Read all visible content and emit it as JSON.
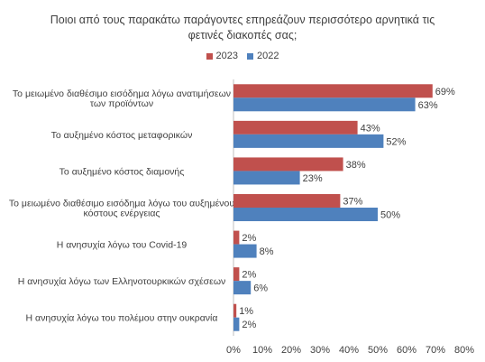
{
  "chart_data": {
    "type": "bar",
    "orientation": "horizontal",
    "title_lines": [
      "Ποιοι  από τους παρακάτω παράγοντες επηρεάζουν περισσότερο  αρνητικά τις",
      "φετινές διακοπές  σας;"
    ],
    "categories": [
      [
        "Το μειωμένο διαθέσιμο  εισόδημα λόγω ανατιμήσεων",
        "των προϊόντων"
      ],
      [
        "Το αυξημένο κόστος μεταφορικών"
      ],
      [
        "Το αυξημένο κόστος διαμονής"
      ],
      [
        "Το μειωμένο διαθέσιμο  εισόδημα  λόγω του αυξημένου",
        "κόστους ενέργειας"
      ],
      [
        "Η ανησυχία λόγω του Covid-19"
      ],
      [
        "Η ανησυχία λόγω των Ελληνοτουρκικών σχέσεων"
      ],
      [
        "Η ανησυχία λόγω του πολέμου  στην ουκρανία"
      ]
    ],
    "series": [
      {
        "name": "2023",
        "color": "#c0504d",
        "values": [
          69,
          43,
          38,
          37,
          2,
          2,
          1
        ]
      },
      {
        "name": "2022",
        "color": "#4f81bd",
        "values": [
          63,
          52,
          23,
          50,
          8,
          6,
          2
        ]
      }
    ],
    "xlim": [
      0,
      80
    ],
    "ticks": [
      "0%",
      "10%",
      "20%",
      "30%",
      "40%",
      "50%",
      "60%",
      "70%",
      "80%"
    ],
    "value_suffix": "%",
    "legend_position": "top",
    "grid": false
  }
}
